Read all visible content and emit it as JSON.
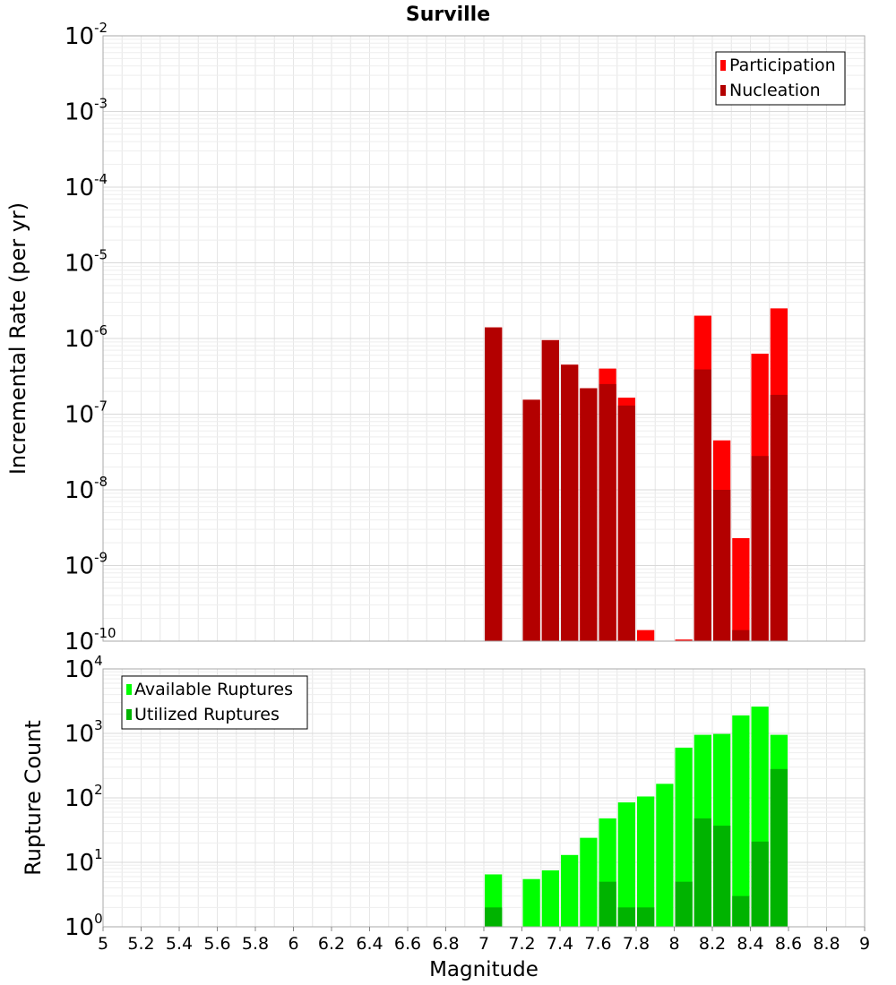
{
  "chart_data": [
    {
      "type": "bar",
      "title": "Surville",
      "ylabel": "Incremental Rate (per yr)",
      "xlabel": "",
      "yscale": "log",
      "ylim_exp": [
        -10,
        -2
      ],
      "xlim": [
        5,
        9
      ],
      "bar_width": 0.1,
      "grid": true,
      "legend_position": "top-right",
      "colors": {
        "participation": "#ff0000",
        "nucleation": "#b30000"
      },
      "series": [
        {
          "name": "Participation",
          "color": "#ff0000",
          "x": [
            7.05,
            7.25,
            7.35,
            7.45,
            7.55,
            7.65,
            7.75,
            7.85,
            8.05,
            8.15,
            8.25,
            8.35,
            8.45,
            8.55
          ],
          "values": [
            1.4e-06,
            1.55e-07,
            9.5e-07,
            4.5e-07,
            2.2e-07,
            4e-07,
            1.65e-07,
            1.4e-10,
            1.05e-10,
            2e-06,
            4.5e-08,
            2.3e-09,
            6.3e-07,
            2.5e-06
          ]
        },
        {
          "name": "Nucleation",
          "color": "#b30000",
          "x": [
            7.05,
            7.25,
            7.35,
            7.45,
            7.55,
            7.65,
            7.75,
            8.15,
            8.25,
            8.35,
            8.45,
            8.55
          ],
          "values": [
            1.4e-06,
            1.55e-07,
            9.5e-07,
            4.5e-07,
            2.2e-07,
            2.5e-07,
            1.3e-07,
            3.9e-07,
            1e-08,
            1.4e-10,
            2.8e-08,
            1.8e-07
          ]
        }
      ]
    },
    {
      "type": "bar",
      "title": "",
      "xlabel": "Magnitude",
      "ylabel": "Rupture Count",
      "yscale": "log",
      "ylim_exp": [
        0,
        4
      ],
      "xlim": [
        5,
        9
      ],
      "bar_width": 0.1,
      "grid": true,
      "legend_position": "top-left",
      "colors": {
        "available": "#00ff00",
        "utilized": "#00b300"
      },
      "x_ticks": [
        "5",
        "5.2",
        "5.4",
        "5.6",
        "5.8",
        "6",
        "6.2",
        "6.4",
        "6.6",
        "6.8",
        "7",
        "7.2",
        "7.4",
        "7.6",
        "7.8",
        "8",
        "8.2",
        "8.4",
        "8.6",
        "8.8",
        "9"
      ],
      "series": [
        {
          "name": "Available Ruptures",
          "color": "#00ff00",
          "x": [
            7.05,
            7.25,
            7.35,
            7.45,
            7.55,
            7.65,
            7.75,
            7.85,
            7.95,
            8.05,
            8.15,
            8.25,
            8.35,
            8.45,
            8.55
          ],
          "values": [
            6.5,
            5.5,
            7.5,
            13,
            24,
            48,
            85,
            105,
            165,
            600,
            950,
            980,
            1900,
            2600,
            950
          ]
        },
        {
          "name": "Utilized Ruptures",
          "color": "#00b300",
          "x": [
            7.05,
            7.25,
            7.35,
            7.45,
            7.55,
            7.65,
            7.75,
            7.85,
            7.95,
            8.05,
            8.15,
            8.25,
            8.35,
            8.45,
            8.55
          ],
          "values": [
            2,
            1,
            1,
            1,
            1,
            5,
            2,
            2,
            1,
            5,
            48,
            37,
            3,
            21,
            280
          ]
        }
      ]
    }
  ]
}
